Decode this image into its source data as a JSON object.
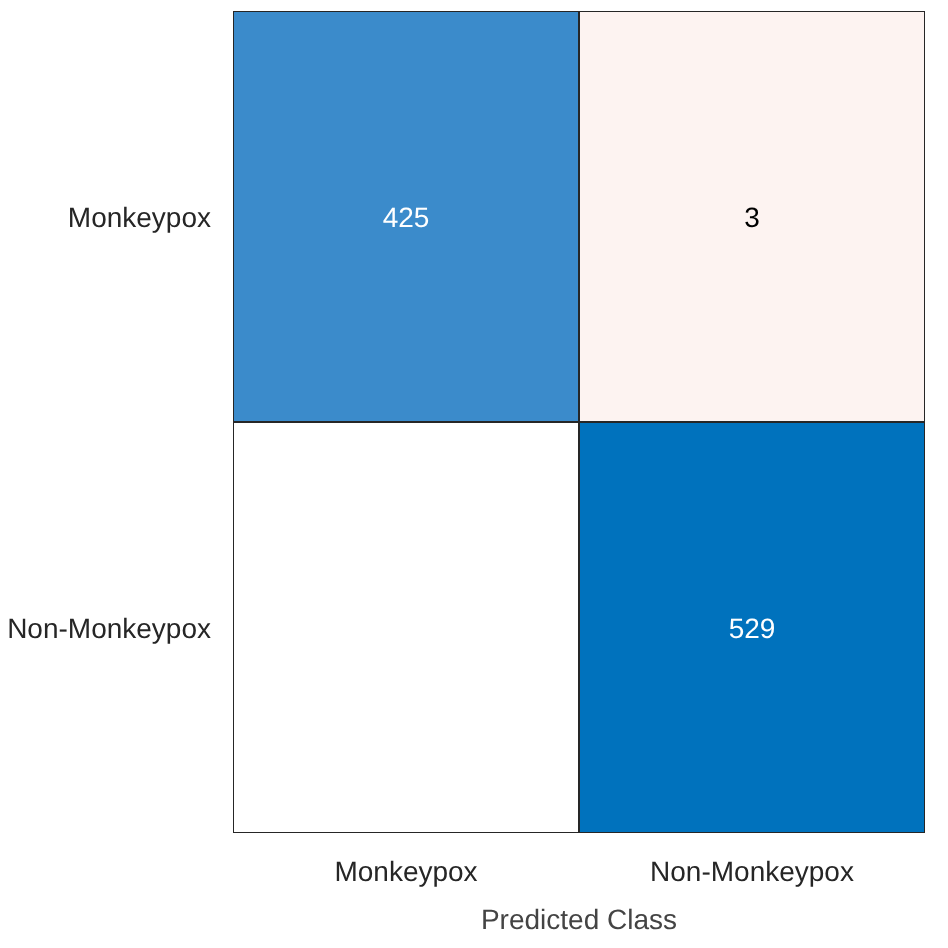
{
  "chart_data": {
    "type": "heatmap",
    "xlabel": "Predicted Class",
    "categories": [
      "Monkeypox",
      "Non-Monkeypox"
    ],
    "y_categories": [
      "Monkeypox",
      "Non-Monkeypox"
    ],
    "cells": [
      [
        425,
        3
      ],
      [
        null,
        529
      ]
    ],
    "colors": [
      [
        "#3b8bcb",
        "#fdf3f1"
      ],
      [
        "#ffffff",
        "#0072bd"
      ]
    ],
    "data_labels": true
  }
}
